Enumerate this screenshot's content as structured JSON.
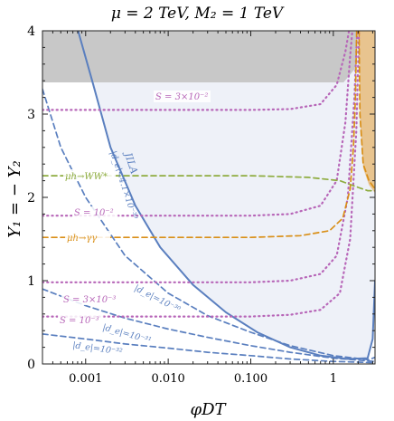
{
  "chart_data": {
    "type": "line",
    "title": "μ = 2 TeV,  M₂ = 1 TeV",
    "xlabel": "φDT",
    "ylabel": "Y₁ = − Y₂",
    "x_scale": "log",
    "xlim": [
      0.0003,
      3.2
    ],
    "ylim": [
      0,
      4
    ],
    "x_ticks": [
      {
        "value": 0.001,
        "label": "0.001"
      },
      {
        "value": 0.01,
        "label": "0.010"
      },
      {
        "value": 0.1,
        "label": "0.100"
      },
      {
        "value": 1,
        "label": "1"
      }
    ],
    "y_ticks": [
      {
        "value": 0,
        "label": "0"
      },
      {
        "value": 1,
        "label": "1"
      },
      {
        "value": 2,
        "label": "2"
      },
      {
        "value": 3,
        "label": "3"
      },
      {
        "value": 4,
        "label": "4"
      }
    ],
    "colors": {
      "edm": "#5a7fbf",
      "S": "#b766b8",
      "ww": "#8eac3f",
      "gg": "#d98f17",
      "excluded_jila": "#eef1f8",
      "excluded_gray": "#c8c8c8",
      "excluded_orange": "#e8c48f"
    },
    "regions": [
      {
        "name": "gray",
        "points": [
          [
            0.0003,
            3.38
          ],
          [
            1.33,
            3.38
          ],
          [
            1.85,
            3.55
          ],
          [
            2.0,
            4.0
          ],
          [
            0.0003,
            4.0
          ]
        ]
      },
      {
        "name": "orange",
        "points": [
          [
            2.05,
            4.0
          ],
          [
            2.1,
            2.95
          ],
          [
            2.3,
            2.35
          ],
          [
            2.7,
            2.15
          ],
          [
            3.2,
            2.05
          ],
          [
            3.2,
            4.0
          ]
        ]
      },
      {
        "name": "jila",
        "points": [
          [
            0.00081,
            4.0
          ],
          [
            0.0012,
            3.4
          ],
          [
            0.002,
            2.6
          ],
          [
            0.004,
            1.9
          ],
          [
            0.008,
            1.4
          ],
          [
            0.02,
            0.95
          ],
          [
            0.05,
            0.62
          ],
          [
            0.12,
            0.38
          ],
          [
            0.3,
            0.2
          ],
          [
            0.7,
            0.1
          ],
          [
            1.5,
            0.06
          ],
          [
            2.6,
            0.07
          ],
          [
            3.0,
            0.3
          ],
          [
            3.2,
            1.0
          ],
          [
            3.2,
            4.0
          ]
        ]
      }
    ],
    "series": [
      {
        "kind": "edm",
        "style": "solid",
        "label": "|d_e|<4.1×10⁻³⁰",
        "points": [
          [
            0.00081,
            4.0
          ],
          [
            0.0012,
            3.4
          ],
          [
            0.002,
            2.6
          ],
          [
            0.004,
            1.9
          ],
          [
            0.008,
            1.4
          ],
          [
            0.02,
            0.95
          ],
          [
            0.05,
            0.62
          ],
          [
            0.12,
            0.38
          ],
          [
            0.3,
            0.2
          ],
          [
            0.7,
            0.1
          ],
          [
            1.5,
            0.06
          ],
          [
            2.6,
            0.07
          ],
          [
            3.0,
            0.3
          ],
          [
            3.2,
            1.0
          ]
        ]
      },
      {
        "kind": "edm",
        "style": "dashed",
        "label": "|d_e|=10⁻³⁰",
        "points": [
          [
            0.0003,
            3.3
          ],
          [
            0.0005,
            2.6
          ],
          [
            0.001,
            2.0
          ],
          [
            0.003,
            1.3
          ],
          [
            0.01,
            0.85
          ],
          [
            0.03,
            0.58
          ],
          [
            0.1,
            0.38
          ],
          [
            0.3,
            0.22
          ],
          [
            1,
            0.1
          ],
          [
            2.7,
            0.05
          ],
          [
            3.2,
            0.08
          ]
        ]
      },
      {
        "kind": "edm",
        "style": "dashed",
        "label": "|d_e|=10⁻³¹",
        "points": [
          [
            0.0003,
            0.9
          ],
          [
            0.001,
            0.7
          ],
          [
            0.003,
            0.55
          ],
          [
            0.01,
            0.42
          ],
          [
            0.03,
            0.32
          ],
          [
            0.1,
            0.22
          ],
          [
            0.3,
            0.14
          ],
          [
            1,
            0.07
          ],
          [
            3.2,
            0.03
          ]
        ]
      },
      {
        "kind": "edm",
        "style": "dashed",
        "label": "|d_e|=10⁻³²",
        "points": [
          [
            0.0003,
            0.36
          ],
          [
            0.001,
            0.3
          ],
          [
            0.003,
            0.24
          ],
          [
            0.01,
            0.19
          ],
          [
            0.03,
            0.14
          ],
          [
            0.1,
            0.1
          ],
          [
            0.3,
            0.06
          ],
          [
            1,
            0.03
          ],
          [
            3.2,
            0.015
          ]
        ]
      },
      {
        "kind": "S",
        "style": "dotted",
        "label": "S = 3×10⁻²",
        "points": [
          [
            0.0003,
            3.05
          ],
          [
            0.1,
            3.05
          ],
          [
            0.3,
            3.06
          ],
          [
            0.7,
            3.12
          ],
          [
            1.1,
            3.35
          ],
          [
            1.4,
            3.75
          ],
          [
            1.55,
            4.0
          ]
        ]
      },
      {
        "kind": "S",
        "style": "dotted",
        "label": "S = 10⁻²",
        "points": [
          [
            0.0003,
            1.78
          ],
          [
            0.1,
            1.78
          ],
          [
            0.3,
            1.8
          ],
          [
            0.7,
            1.9
          ],
          [
            1.1,
            2.2
          ],
          [
            1.4,
            2.9
          ],
          [
            1.6,
            3.7
          ],
          [
            1.7,
            4.0
          ]
        ]
      },
      {
        "kind": "S",
        "style": "dotted",
        "label": "S = 3×10⁻³",
        "points": [
          [
            0.0003,
            0.98
          ],
          [
            0.1,
            0.98
          ],
          [
            0.3,
            1.0
          ],
          [
            0.7,
            1.08
          ],
          [
            1.1,
            1.3
          ],
          [
            1.5,
            2.0
          ],
          [
            1.8,
            3.2
          ],
          [
            1.95,
            4.0
          ]
        ]
      },
      {
        "kind": "S",
        "style": "dotted",
        "label": "S = 10⁻³",
        "points": [
          [
            0.0003,
            0.57
          ],
          [
            0.1,
            0.57
          ],
          [
            0.3,
            0.59
          ],
          [
            0.7,
            0.65
          ],
          [
            1.2,
            0.85
          ],
          [
            1.6,
            1.5
          ],
          [
            1.9,
            2.8
          ],
          [
            2.05,
            4.0
          ]
        ]
      },
      {
        "kind": "ww",
        "style": "dashed",
        "label": "μh→WW*",
        "points": [
          [
            0.0003,
            2.26
          ],
          [
            0.01,
            2.26
          ],
          [
            0.1,
            2.26
          ],
          [
            0.5,
            2.24
          ],
          [
            1.2,
            2.2
          ],
          [
            2.0,
            2.12
          ],
          [
            2.6,
            2.08
          ],
          [
            3.2,
            2.08
          ]
        ]
      },
      {
        "kind": "gg",
        "style": "dashed",
        "label": "μh→γγ",
        "points": [
          [
            0.0003,
            1.52
          ],
          [
            0.1,
            1.52
          ],
          [
            0.4,
            1.54
          ],
          [
            0.9,
            1.6
          ],
          [
            1.3,
            1.75
          ],
          [
            1.6,
            2.1
          ],
          [
            1.75,
            2.6
          ],
          [
            1.85,
            3.2
          ],
          [
            1.92,
            4.0
          ]
        ]
      },
      {
        "kind": "gg",
        "style": "dashed",
        "label": "",
        "points": [
          [
            2.05,
            4.0
          ],
          [
            2.1,
            3.0
          ],
          [
            2.3,
            2.4
          ],
          [
            2.7,
            2.2
          ],
          [
            3.2,
            2.1
          ]
        ]
      }
    ],
    "annotations": {
      "jila": "JILA",
      "edm_bound": "|d_e|<4.1×10⁻³⁰",
      "s1": "S = 3×10⁻²",
      "s2": "S = 10⁻²",
      "s3": "S = 3×10⁻³",
      "s4": "S = 10⁻³",
      "ww": "μh→WW*",
      "gg": "μh→γγ",
      "d30": "|d_e|=10⁻³⁰",
      "d31": "|d_e|=10⁻³¹",
      "d32": "|d_e|=10⁻³²"
    }
  }
}
